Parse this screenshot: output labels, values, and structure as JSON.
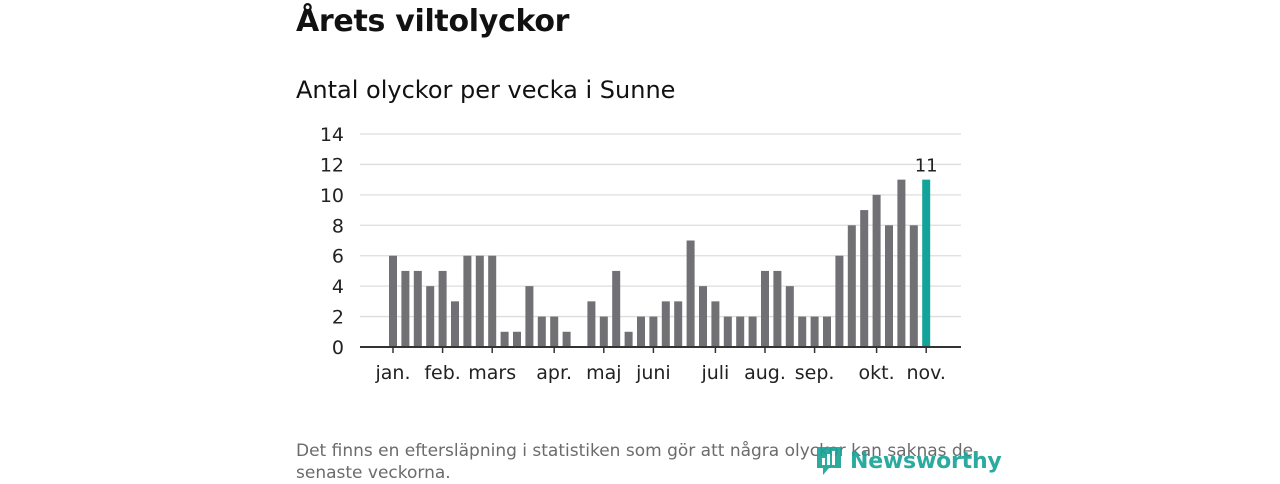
{
  "header": {
    "title": "Årets viltolyckor",
    "subtitle": "Antal olyckor per vecka i Sunne"
  },
  "footer": {
    "note": "Det finns en eftersläpning i statistiken som gör att några olyckor kan saknas de senaste veckorna.",
    "brand": "Newsworthy"
  },
  "colors": {
    "bar": "#707075",
    "highlight": "#12a39b",
    "brand": "#1aa399",
    "grid": "#dddddd",
    "axis": "#333333"
  },
  "chart_data": {
    "type": "bar",
    "title": "Antal olyckor per vecka i Sunne",
    "xlabel": "",
    "ylabel": "",
    "ylim": [
      0,
      14
    ],
    "yticks": [
      0,
      2,
      4,
      6,
      8,
      10,
      12,
      14
    ],
    "grid": true,
    "values": [
      6,
      5,
      5,
      4,
      5,
      3,
      6,
      6,
      6,
      1,
      1,
      4,
      2,
      2,
      1,
      0,
      3,
      2,
      5,
      1,
      2,
      2,
      3,
      3,
      7,
      4,
      3,
      2,
      2,
      2,
      5,
      5,
      4,
      2,
      2,
      2,
      6,
      8,
      9,
      10,
      8,
      11,
      8,
      11
    ],
    "highlight_index": 43,
    "highlight_label": "11",
    "month_labels": [
      {
        "label": "jan.",
        "week_index": 0
      },
      {
        "label": "feb.",
        "week_index": 4
      },
      {
        "label": "mars",
        "week_index": 8
      },
      {
        "label": "apr.",
        "week_index": 13
      },
      {
        "label": "maj",
        "week_index": 17
      },
      {
        "label": "juni",
        "week_index": 21
      },
      {
        "label": "juli",
        "week_index": 26
      },
      {
        "label": "aug.",
        "week_index": 30
      },
      {
        "label": "sep.",
        "week_index": 34
      },
      {
        "label": "okt.",
        "week_index": 39
      },
      {
        "label": "nov.",
        "week_index": 43
      }
    ]
  }
}
